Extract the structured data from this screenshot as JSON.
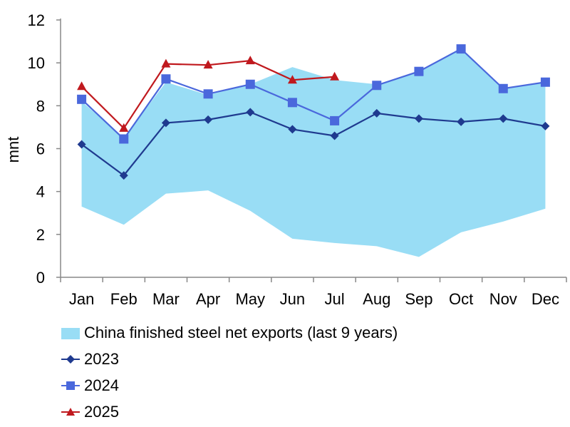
{
  "chart_data": {
    "type": "line",
    "ylabel": "mnt",
    "xlabel": "",
    "ylim": [
      0,
      12
    ],
    "yticks": [
      0,
      2,
      4,
      6,
      8,
      10,
      12
    ],
    "categories": [
      "Jan",
      "Feb",
      "Mar",
      "Apr",
      "May",
      "Jun",
      "Jul",
      "Aug",
      "Sep",
      "Oct",
      "Nov",
      "Dec"
    ],
    "band": {
      "name": "China finished steel net exports (last 9 years)",
      "color": "#99DDF5",
      "low": [
        3.3,
        2.45,
        3.9,
        4.05,
        3.1,
        1.8,
        1.6,
        1.45,
        0.95,
        2.1,
        2.6,
        3.2
      ],
      "high": [
        8.2,
        6.5,
        9.1,
        8.5,
        9.0,
        9.8,
        9.2,
        9.0,
        9.6,
        10.7,
        8.8,
        9.1
      ]
    },
    "series": [
      {
        "name": "2023",
        "color": "#1F3A8F",
        "marker": "diamond",
        "values": [
          6.2,
          4.75,
          7.2,
          7.35,
          7.7,
          6.9,
          6.6,
          7.65,
          7.4,
          7.25,
          7.4,
          7.05
        ]
      },
      {
        "name": "2024",
        "color": "#4A68DC",
        "marker": "square",
        "values": [
          8.3,
          6.45,
          9.25,
          8.55,
          9.0,
          8.15,
          7.3,
          8.95,
          9.6,
          10.65,
          8.8,
          9.1
        ]
      },
      {
        "name": "2025",
        "color": "#C0191E",
        "marker": "triangle",
        "values": [
          8.9,
          6.95,
          9.95,
          9.9,
          10.1,
          9.2,
          9.35,
          null,
          null,
          null,
          null,
          null
        ]
      }
    ],
    "grid": false,
    "legend_position": "bottom"
  }
}
